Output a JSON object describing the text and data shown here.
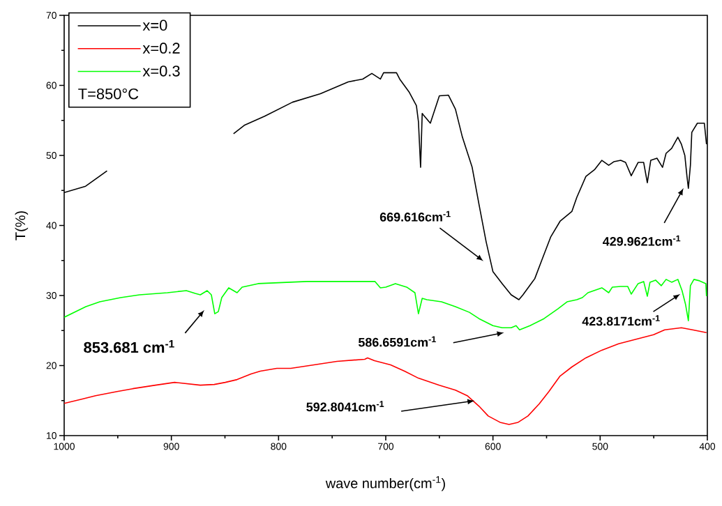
{
  "chart_data": {
    "type": "line",
    "xlabel": "wave number(cm$^{-1}$)",
    "ylabel": "T(%)",
    "legend_title": "T=850°C",
    "legend": "top left",
    "marker": "none",
    "line_style": "solid",
    "grid": false,
    "xlim": [
      1000,
      400
    ],
    "ylim": [
      10,
      70
    ],
    "xticks": [
      1000,
      {
        "value": 950,
        "label": null
      },
      900,
      {
        "value": 850,
        "label": null
      },
      800,
      {
        "value": 750,
        "label": null
      },
      700,
      {
        "value": 650,
        "label": null
      },
      600,
      {
        "value": 550,
        "label": null
      },
      500,
      {
        "value": 450,
        "label": null
      },
      400
    ],
    "yticks": [
      10,
      {
        "value": 15,
        "label": null
      },
      20,
      {
        "value": 25,
        "label": null
      },
      30,
      {
        "value": 35,
        "label": null
      },
      40,
      {
        "value": 45,
        "label": null
      },
      50,
      {
        "value": 55,
        "label": null
      },
      60,
      {
        "value": 65,
        "label": null
      },
      70
    ],
    "series": [
      {
        "name": "x=0",
        "color": "#000000",
        "x": [
          1000,
          980,
          960,
          950,
          842,
          832,
          813,
          787,
          761,
          735,
          721.5,
          713,
          705,
          702,
          690,
          687,
          678,
          671.4,
          669.5,
          667.5,
          666,
          665,
          658.4,
          650,
          641.5,
          635,
          628.5,
          619.4,
          613,
          606.4,
          600,
          591.4,
          583,
          575.8,
          572,
          561,
          554.3,
          546,
          537.4,
          526.4,
          521.8,
          513.3,
          505,
          498.4,
          492,
          487.3,
          480.8,
          476.3,
          471,
          464.6,
          459.4,
          456,
          452.8,
          447,
          441.8,
          438.5,
          433.3,
          427.5,
          424.2,
          421,
          419,
          417.7,
          415.8,
          414.5,
          409.3,
          402.8,
          400.8
        ],
        "values": [
          44.7,
          45.6,
          47.8,
          null,
          53.1,
          54.3,
          55.6,
          57.6,
          58.8,
          60.5,
          60.9,
          61.7,
          60.9,
          61.8,
          61.8,
          60.9,
          59.0,
          57.1,
          54.8,
          48.3,
          56.0,
          55.8,
          54.6,
          58.5,
          58.6,
          56.6,
          52.6,
          48.3,
          43.0,
          37.7,
          33.4,
          31.7,
          30.1,
          29.4,
          30.1,
          32.4,
          35.1,
          38.4,
          40.6,
          42.0,
          44.0,
          47.0,
          48.0,
          49.3,
          48.6,
          49.1,
          49.3,
          49.0,
          47.1,
          49.0,
          49.0,
          46.1,
          49.3,
          49.6,
          48.3,
          50.3,
          51.0,
          52.6,
          51.6,
          50.0,
          47.0,
          45.3,
          48.6,
          53.3,
          54.6,
          54.6,
          51.6
        ]
      },
      {
        "name": "x=0.2",
        "color": "#ff0000",
        "x": [
          1000,
          983.7,
          970.7,
          950.6,
          936,
          914.8,
          897,
          873,
          860,
          849.7,
          838.7,
          825.6,
          817,
          801.6,
          788.6,
          767,
          745.6,
          719.6,
          717,
          710.5,
          695.5,
          682.5,
          669.5,
          650,
          635,
          624,
          613,
          604.4,
          593.4,
          585,
          576.5,
          567.4,
          557,
          547.8,
          537.4,
          526.4,
          513.3,
          498.4,
          482.8,
          467.8,
          450.2,
          439.8,
          424.2,
          413.8,
          400.8
        ],
        "values": [
          14.6,
          15.2,
          15.7,
          16.3,
          16.7,
          17.2,
          17.6,
          17.2,
          17.3,
          17.6,
          18.0,
          18.8,
          19.2,
          19.6,
          19.6,
          20.1,
          20.6,
          20.9,
          21.1,
          20.7,
          20.1,
          19.2,
          18.2,
          17.2,
          16.5,
          15.7,
          14.2,
          12.8,
          11.9,
          11.6,
          11.9,
          12.8,
          14.5,
          16.3,
          18.5,
          19.8,
          21.1,
          22.2,
          23.1,
          23.7,
          24.4,
          25.1,
          25.4,
          25.1,
          24.7
        ]
      },
      {
        "name": "x=0.3",
        "color": "#00ff00",
        "x": [
          1000,
          979.8,
          966.8,
          947.3,
          929.7,
          903.7,
          886,
          877.7,
          873,
          866.6,
          862.7,
          859.5,
          856.2,
          853,
          846.5,
          838.7,
          834,
          819,
          773.6,
          721.5,
          710,
          705,
          700,
          691,
          680.5,
          672.8,
          669.5,
          666,
          661.7,
          648,
          635,
          622,
          613,
          600,
          591.4,
          583,
          578.4,
          575.2,
          565.4,
          552.4,
          539.4,
          530.9,
          521.8,
          516.6,
          511.4,
          498.4,
          492,
          488.6,
          480.8,
          474.3,
          471,
          464.6,
          459.4,
          456,
          453.5,
          448.3,
          443,
          438.5,
          433.3,
          427.5,
          423.6,
          420.3,
          417.7,
          415.8,
          412.5,
          407.3,
          401.4,
          400.8
        ],
        "values": [
          26.9,
          28.4,
          29.1,
          29.7,
          30.1,
          30.4,
          30.7,
          30.3,
          30.1,
          30.7,
          30.1,
          27.4,
          27.7,
          29.7,
          31.1,
          30.4,
          31.2,
          31.7,
          32.0,
          32.0,
          32.0,
          31.1,
          31.2,
          31.7,
          31.2,
          30.4,
          27.4,
          29.6,
          29.4,
          29.1,
          28.4,
          27.6,
          26.7,
          25.7,
          25.4,
          25.4,
          25.7,
          25.1,
          25.7,
          26.7,
          28.1,
          29.1,
          29.4,
          29.7,
          30.4,
          31.1,
          30.4,
          31.2,
          31.3,
          31.3,
          30.2,
          31.7,
          32.0,
          29.9,
          31.9,
          32.2,
          31.4,
          32.3,
          31.9,
          32.3,
          30.7,
          28.7,
          26.4,
          31.4,
          32.3,
          32.1,
          31.7,
          29.9
        ]
      }
    ],
    "annotations": [
      "669.616cm$^{-1}$",
      "429.9621cm$^{-1}$",
      "853.681 cm$^{-1}$",
      "586.6591cm$^{-1}$",
      "423.8171cm$^{-1}$",
      "592.8041cm$^{-1}$"
    ]
  }
}
